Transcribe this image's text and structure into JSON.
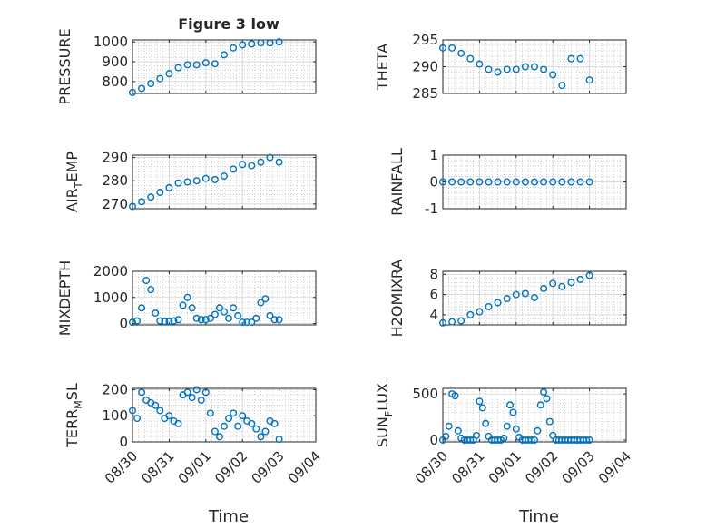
{
  "colors": {
    "marker": "#0072BD",
    "axis": "#262626",
    "grid": "#b0b0b0",
    "background": "#ffffff"
  },
  "chart_data": {
    "type": "scatter",
    "title": "Figure 3 low",
    "xlabel": "Time",
    "x_tick_labels": [
      "08/30",
      "08/31",
      "09/01",
      "09/02",
      "09/03",
      "09/04"
    ],
    "x_date_range": [
      "08/30",
      "09/04"
    ],
    "grid": true,
    "marker": "open-circle",
    "panels": [
      {
        "ylabel": "PRESSURE",
        "ylim": [
          740,
          1010
        ],
        "yticks": [
          800,
          900,
          1000
        ],
        "ytick_labels": [
          "800",
          "900",
          "1000"
        ],
        "title": "Figure 3 low",
        "series": [
          {
            "x": [
              "08/30 00:00",
              "08/30 06:00",
              "08/30 12:00",
              "08/30 18:00",
              "08/31 00:00",
              "08/31 06:00",
              "08/31 12:00",
              "08/31 18:00",
              "09/01 00:00",
              "09/01 06:00",
              "09/01 12:00",
              "09/01 18:00",
              "09/02 00:00",
              "09/02 06:00",
              "09/02 12:00",
              "09/02 18:00",
              "09/03 00:00"
            ],
            "y": [
              745,
              765,
              790,
              815,
              840,
              870,
              885,
              885,
              895,
              890,
              935,
              970,
              985,
              990,
              995,
              995,
              1000
            ]
          }
        ]
      },
      {
        "ylabel": "THETA",
        "ylim": [
          285,
          295
        ],
        "yticks": [
          285,
          290,
          295
        ],
        "ytick_labels": [
          "285",
          "290",
          "295"
        ],
        "series": [
          {
            "x": [
              "08/30 00:00",
              "08/30 06:00",
              "08/30 12:00",
              "08/30 18:00",
              "08/31 00:00",
              "08/31 06:00",
              "08/31 12:00",
              "08/31 18:00",
              "09/01 00:00",
              "09/01 06:00",
              "09/01 12:00",
              "09/01 18:00",
              "09/02 00:00",
              "09/02 06:00",
              "09/02 12:00",
              "09/02 18:00",
              "09/03 00:00"
            ],
            "y": [
              293.5,
              293.5,
              292.5,
              291.5,
              290.5,
              289.5,
              289,
              289.5,
              289.5,
              290,
              290,
              289.5,
              288.5,
              286.5,
              291.5,
              291.5,
              287.5
            ]
          }
        ]
      },
      {
        "ylabel": "AIR_TEMP",
        "ylim": [
          268,
          291
        ],
        "yticks": [
          270,
          280,
          290
        ],
        "ytick_labels": [
          "270",
          "280",
          "290"
        ],
        "series": [
          {
            "x": [
              "08/30 00:00",
              "08/30 06:00",
              "08/30 12:00",
              "08/30 18:00",
              "08/31 00:00",
              "08/31 06:00",
              "08/31 12:00",
              "08/31 18:00",
              "09/01 00:00",
              "09/01 06:00",
              "09/01 12:00",
              "09/01 18:00",
              "09/02 00:00",
              "09/02 06:00",
              "09/02 12:00",
              "09/02 18:00",
              "09/03 00:00"
            ],
            "y": [
              269,
              271,
              273,
              275,
              277,
              279,
              279.5,
              280,
              281,
              280.5,
              282,
              285,
              287,
              286.5,
              288,
              290,
              288
            ]
          }
        ]
      },
      {
        "ylabel": "RAINFALL",
        "ylim": [
          -1,
          1
        ],
        "yticks": [
          -1,
          0,
          1
        ],
        "ytick_labels": [
          "-1",
          "0",
          "1"
        ],
        "series": [
          {
            "x": [
              "08/30 00:00",
              "08/30 06:00",
              "08/30 12:00",
              "08/30 18:00",
              "08/31 00:00",
              "08/31 06:00",
              "08/31 12:00",
              "08/31 18:00",
              "09/01 00:00",
              "09/01 06:00",
              "09/01 12:00",
              "09/01 18:00",
              "09/02 00:00",
              "09/02 06:00",
              "09/02 12:00",
              "09/02 18:00",
              "09/03 00:00"
            ],
            "y": [
              0,
              0,
              0,
              0,
              0,
              0,
              0,
              0,
              0,
              0,
              0,
              0,
              0,
              0,
              0,
              0,
              0
            ]
          }
        ]
      },
      {
        "ylabel": "MIXDEPTH",
        "ylim": [
          -50,
          2000
        ],
        "yticks": [
          0,
          1000,
          2000
        ],
        "ytick_labels": [
          "0",
          "1000",
          "2000"
        ],
        "series": [
          {
            "x": [
              "08/30 00:00",
              "08/30 03:00",
              "08/30 06:00",
              "08/30 09:00",
              "08/30 12:00",
              "08/30 15:00",
              "08/30 18:00",
              "08/30 21:00",
              "08/31 00:00",
              "08/31 03:00",
              "08/31 06:00",
              "08/31 09:00",
              "08/31 12:00",
              "08/31 15:00",
              "08/31 18:00",
              "08/31 21:00",
              "09/01 00:00",
              "09/01 03:00",
              "09/01 06:00",
              "09/01 09:00",
              "09/01 12:00",
              "09/01 15:00",
              "09/01 18:00",
              "09/01 21:00",
              "09/02 00:00",
              "09/02 03:00",
              "09/02 06:00",
              "09/02 09:00",
              "09/02 12:00",
              "09/02 15:00",
              "09/02 18:00",
              "09/02 21:00",
              "09/03 00:00"
            ],
            "y": [
              50,
              100,
              600,
              1650,
              1300,
              400,
              100,
              80,
              80,
              100,
              150,
              700,
              1000,
              600,
              200,
              150,
              150,
              200,
              350,
              600,
              450,
              200,
              600,
              300,
              50,
              50,
              50,
              200,
              800,
              950,
              300,
              150,
              150
            ]
          }
        ]
      },
      {
        "ylabel": "H2OMIXRA",
        "ylim": [
          3,
          8.3
        ],
        "yticks": [
          4,
          6,
          8
        ],
        "ytick_labels": [
          "4",
          "6",
          "8"
        ],
        "series": [
          {
            "x": [
              "08/30 00:00",
              "08/30 06:00",
              "08/30 12:00",
              "08/30 18:00",
              "08/31 00:00",
              "08/31 06:00",
              "08/31 12:00",
              "08/31 18:00",
              "09/01 00:00",
              "09/01 06:00",
              "09/01 12:00",
              "09/01 18:00",
              "09/02 00:00",
              "09/02 06:00",
              "09/02 12:00",
              "09/02 18:00",
              "09/03 00:00"
            ],
            "y": [
              3.2,
              3.3,
              3.4,
              4,
              4.3,
              4.8,
              5.2,
              5.6,
              6,
              6.1,
              5.7,
              6.6,
              7.1,
              6.8,
              7.2,
              7.5,
              7.9
            ]
          }
        ]
      },
      {
        "ylabel": "TERR_MSL",
        "ylim": [
          0,
          205
        ],
        "yticks": [
          0,
          100,
          200
        ],
        "ytick_labels": [
          "0",
          "100",
          "200"
        ],
        "series": [
          {
            "x": [
              "08/30 00:00",
              "08/30 03:00",
              "08/30 06:00",
              "08/30 09:00",
              "08/30 12:00",
              "08/30 15:00",
              "08/30 18:00",
              "08/30 21:00",
              "08/31 00:00",
              "08/31 03:00",
              "08/31 06:00",
              "08/31 09:00",
              "08/31 12:00",
              "08/31 15:00",
              "08/31 18:00",
              "08/31 21:00",
              "09/01 00:00",
              "09/01 03:00",
              "09/01 06:00",
              "09/01 09:00",
              "09/01 12:00",
              "09/01 15:00",
              "09/01 18:00",
              "09/01 21:00",
              "09/02 00:00",
              "09/02 03:00",
              "09/02 06:00",
              "09/02 09:00",
              "09/02 12:00",
              "09/02 15:00",
              "09/02 18:00",
              "09/02 21:00",
              "09/03 00:00"
            ],
            "y": [
              120,
              90,
              190,
              160,
              150,
              140,
              120,
              90,
              100,
              80,
              70,
              180,
              190,
              170,
              200,
              160,
              190,
              110,
              40,
              20,
              60,
              90,
              110,
              60,
              100,
              80,
              70,
              50,
              20,
              40,
              80,
              70,
              10
            ]
          }
        ]
      },
      {
        "ylabel": "SUN_FLUX",
        "ylim": [
          -20,
          560
        ],
        "yticks": [
          0,
          500
        ],
        "ytick_labels": [
          "0",
          "500"
        ],
        "series": [
          {
            "x": [
              "08/30 00:00",
              "08/30 02:00",
              "08/30 04:00",
              "08/30 06:00",
              "08/30 08:00",
              "08/30 10:00",
              "08/30 12:00",
              "08/30 14:00",
              "08/30 16:00",
              "08/30 18:00",
              "08/30 20:00",
              "08/30 22:00",
              "08/31 00:00",
              "08/31 02:00",
              "08/31 04:00",
              "08/31 06:00",
              "08/31 08:00",
              "08/31 10:00",
              "08/31 12:00",
              "08/31 14:00",
              "08/31 16:00",
              "08/31 18:00",
              "08/31 20:00",
              "08/31 22:00",
              "09/01 00:00",
              "09/01 02:00",
              "09/01 04:00",
              "09/01 06:00",
              "09/01 08:00",
              "09/01 10:00",
              "09/01 12:00",
              "09/01 14:00",
              "09/01 16:00",
              "09/01 18:00",
              "09/01 20:00",
              "09/01 22:00",
              "09/02 00:00",
              "09/02 02:00",
              "09/02 04:00",
              "09/02 06:00",
              "09/02 08:00",
              "09/02 10:00",
              "09/02 12:00",
              "09/02 14:00",
              "09/02 16:00",
              "09/02 18:00",
              "09/02 20:00",
              "09/02 22:00",
              "09/03 00:00"
            ],
            "y": [
              0,
              40,
              150,
              500,
              480,
              100,
              20,
              0,
              0,
              0,
              0,
              50,
              420,
              350,
              180,
              40,
              0,
              0,
              0,
              0,
              20,
              150,
              380,
              300,
              120,
              30,
              0,
              0,
              0,
              0,
              0,
              100,
              380,
              520,
              450,
              200,
              50,
              0,
              0,
              0,
              0,
              0,
              0,
              0,
              0,
              0,
              0,
              0,
              0
            ]
          }
        ]
      }
    ]
  },
  "labels": {
    "title": "Figure 3 low",
    "xlabel_left": "Time",
    "xlabel_right": "Time",
    "ylabels": [
      {
        "main": "PRESSURE",
        "sub": "",
        "tail": ""
      },
      {
        "main": "THETA",
        "sub": "",
        "tail": ""
      },
      {
        "main": "AIR",
        "sub": "T",
        "tail": "EMP"
      },
      {
        "main": "RAINFALL",
        "sub": "",
        "tail": ""
      },
      {
        "main": "MIXDEPTH",
        "sub": "",
        "tail": ""
      },
      {
        "main": "H2OMIXRA",
        "sub": "",
        "tail": ""
      },
      {
        "main": "TERR",
        "sub": "M",
        "tail": "SL"
      },
      {
        "main": "SUN",
        "sub": "F",
        "tail": "LUX"
      }
    ]
  }
}
